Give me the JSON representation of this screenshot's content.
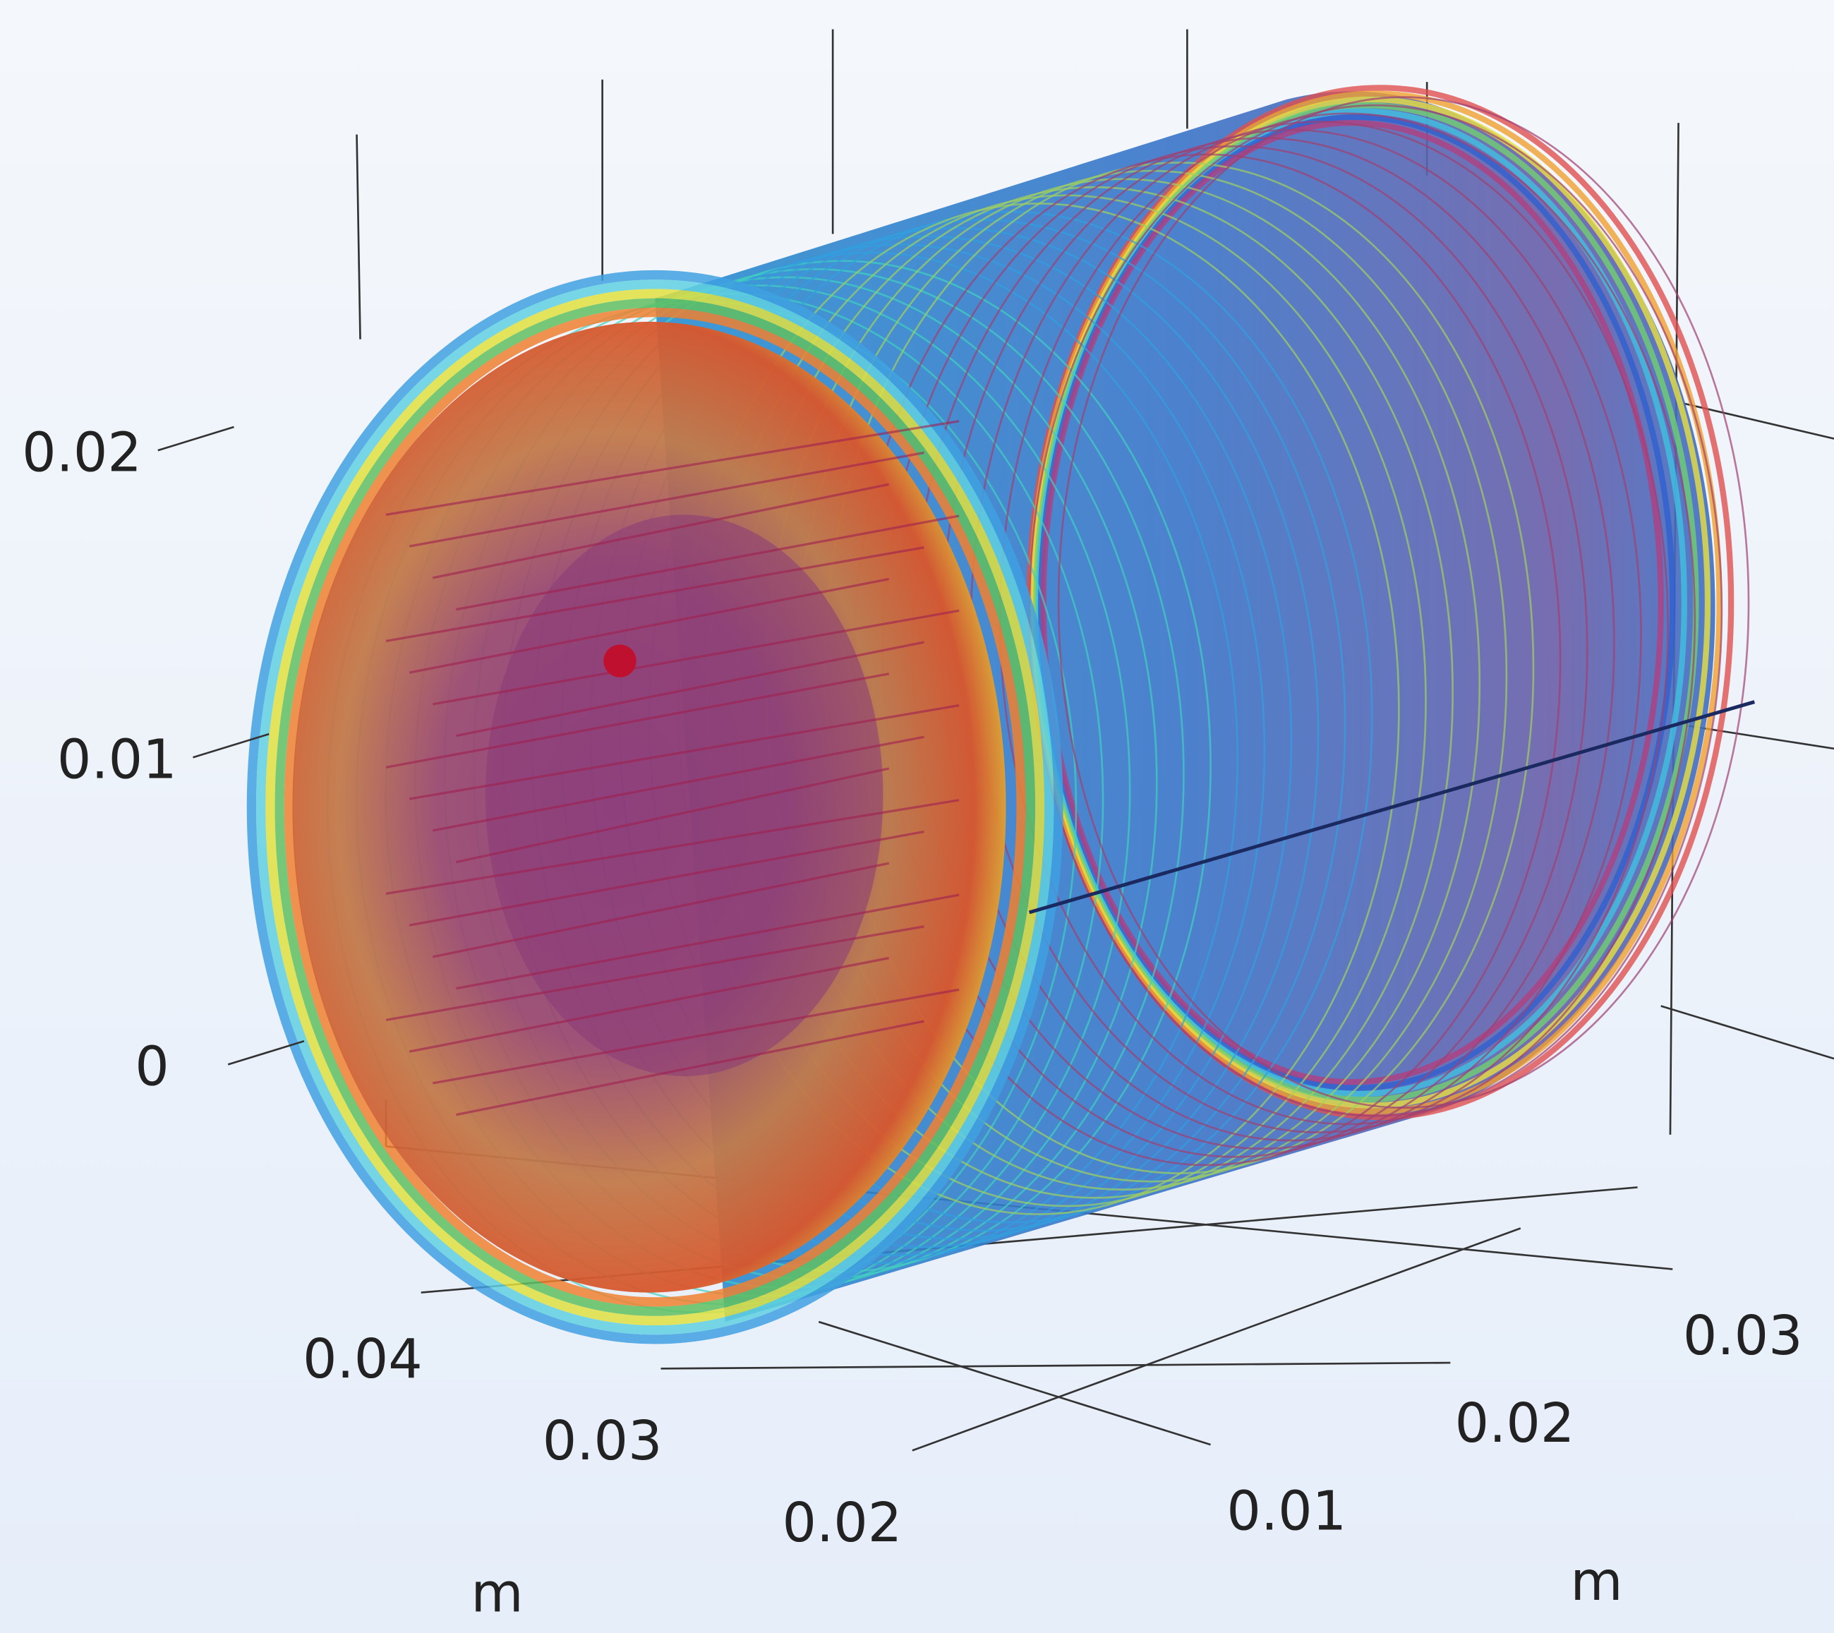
{
  "chart_data": {
    "type": "surface3d",
    "zticks": [
      0,
      0.01,
      0.02
    ],
    "xticks": [
      0.02,
      0.03,
      0.04
    ],
    "yticks": [
      0.01,
      0.02,
      0.03
    ],
    "xlabel": "m",
    "ylabel": "m"
  }
}
